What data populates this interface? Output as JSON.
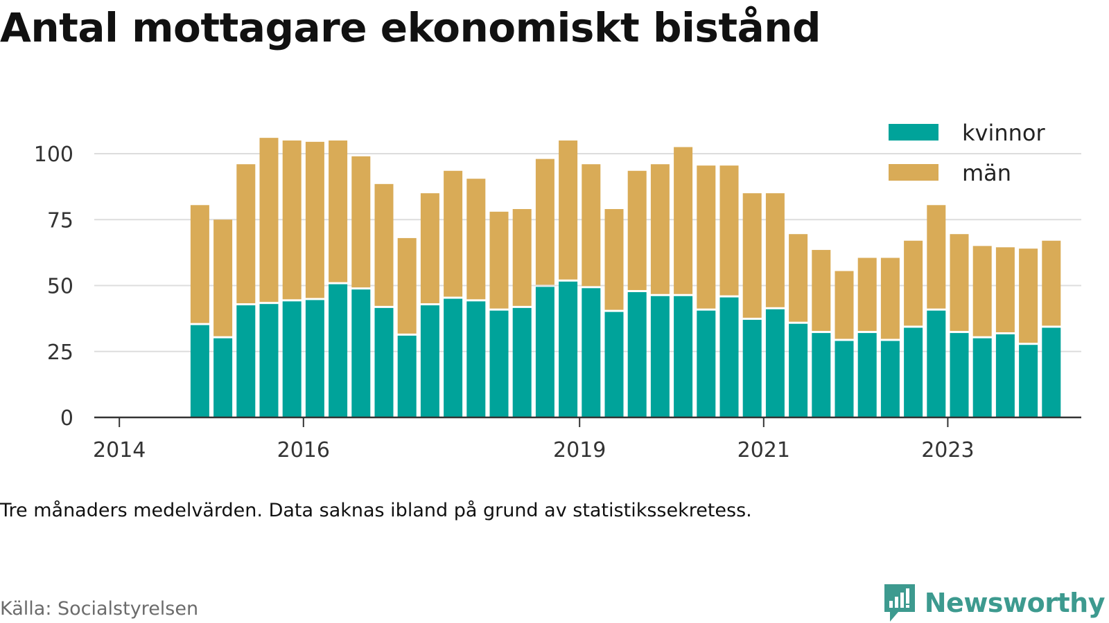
{
  "title": "Antal mottagare ekonomiskt bistånd",
  "note": "Tre månaders medelvärden. Data saknas ibland på grund av statistikssekretess.",
  "source": "Källa: Socialstyrelsen",
  "brand": "Newsworthy",
  "colors": {
    "kvinnor": "#00a39a",
    "man": "#d9ab57",
    "grid": "#dddddd",
    "axis": "#333333",
    "brand": "#3d9a8f"
  },
  "chart_data": {
    "type": "bar",
    "stacked": true,
    "title": "Antal mottagare ekonomiskt bistånd",
    "xlabel": "",
    "ylabel": "",
    "ylim": [
      0,
      110
    ],
    "grid": true,
    "legend_position": "top-right",
    "y_ticks": [
      "0",
      "25",
      "50",
      "75",
      "100"
    ],
    "x_ticks": [
      "2014",
      "2016",
      "2019",
      "2021",
      "2023"
    ],
    "categories": [
      "2014-Q2",
      "2014-Q3",
      "2014-Q4",
      "2015-Q1",
      "2015-Q2",
      "2015-Q3",
      "2015-Q4",
      "2016-Q1",
      "2016-Q2",
      "2016-Q3",
      "2016-Q4",
      "2017-Q1",
      "2017-Q2",
      "2017-Q3",
      "2017-Q4",
      "2018-Q1",
      "2018-Q2",
      "2018-Q3",
      "2018-Q4",
      "2019-Q1",
      "2019-Q2",
      "2019-Q3",
      "2019-Q4",
      "2020-Q1",
      "2020-Q2",
      "2020-Q3",
      "2020-Q4",
      "2021-Q1",
      "2021-Q2",
      "2021-Q3",
      "2021-Q4",
      "2022-Q1",
      "2022-Q2",
      "2022-Q3",
      "2022-Q4",
      "2023-Q1",
      "2023-Q2",
      "2023-Q3",
      "2023-Q4",
      "2024-Q1",
      "2024-Q2",
      "2024-Q3"
    ],
    "series": [
      {
        "name": "kvinnor",
        "values": [
          null,
          null,
          35,
          30,
          42.5,
          43,
          44,
          44.5,
          50.5,
          48.5,
          41.5,
          31,
          42.5,
          45,
          44,
          40.5,
          41.5,
          49.5,
          51.5,
          49,
          40,
          47.5,
          46,
          46,
          40.5,
          45.5,
          37,
          41,
          35.5,
          32,
          29,
          32,
          29,
          34,
          40.5,
          32,
          30,
          31.5,
          27.5,
          34,
          null,
          null
        ]
      },
      {
        "name": "män",
        "values": [
          null,
          null,
          45.5,
          45,
          53.5,
          63,
          61,
          60,
          54.5,
          50.5,
          47,
          37,
          42.5,
          48.5,
          46.5,
          37.5,
          37.5,
          48.5,
          53.5,
          47,
          39,
          46,
          50,
          56.5,
          55,
          50,
          48,
          44,
          34,
          31.5,
          26.5,
          28.5,
          31.5,
          33,
          40,
          37.5,
          35,
          33,
          36.5,
          33,
          null,
          null
        ]
      }
    ]
  }
}
